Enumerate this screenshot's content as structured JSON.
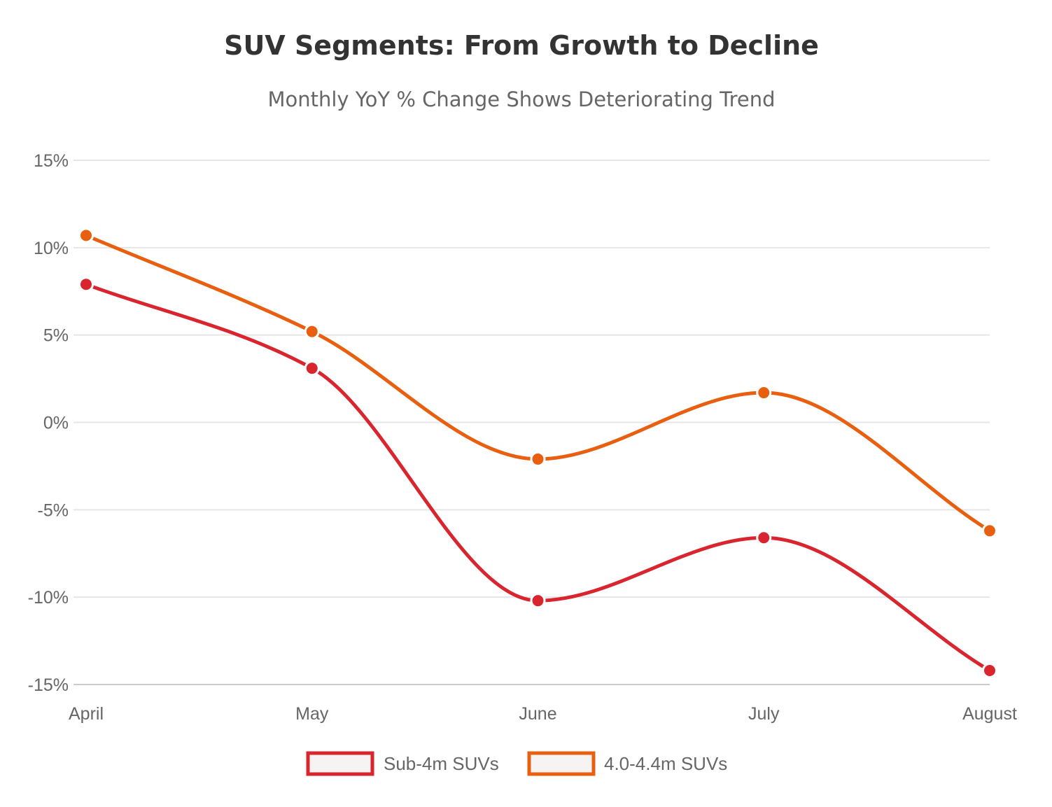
{
  "chart_data": {
    "type": "line",
    "title": "SUV Segments: From Growth to Decline",
    "subtitle": "Monthly YoY % Change Shows Deteriorating Trend",
    "xlabel": "",
    "ylabel": "",
    "categories": [
      "April",
      "May",
      "June",
      "July",
      "August"
    ],
    "yticks": [
      "15%",
      "10%",
      "5%",
      "0%",
      "-5%",
      "-10%",
      "-15%"
    ],
    "ylim": [
      -15,
      15
    ],
    "grid": true,
    "legend_position": "bottom-center",
    "smooth": true,
    "series": [
      {
        "name": "Sub-4m SUVs",
        "color": "#d9262e",
        "values": [
          7.9,
          3.1,
          -10.2,
          -6.6,
          -14.2
        ]
      },
      {
        "name": "4.0-4.4m SUVs",
        "color": "#e8600f",
        "values": [
          10.7,
          5.2,
          -2.1,
          1.7,
          -6.2
        ]
      }
    ]
  }
}
